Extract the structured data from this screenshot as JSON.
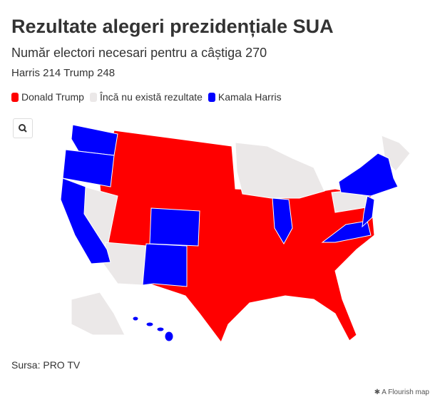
{
  "header": {
    "title": "Rezultate alegeri prezidențiale SUA",
    "subtitle": "Număr electori necesari pentru a câștiga 270",
    "tally": "Harris 214 Trump 248"
  },
  "legend": [
    {
      "label": "Donald Trump",
      "color": "#ff0000"
    },
    {
      "label": "Încă nu există rezultate",
      "color": "#ebe8e8"
    },
    {
      "label": "Kamala Harris",
      "color": "#0000ff"
    }
  ],
  "footer": {
    "source": "Sursa: PRO TV",
    "credit": "A Flourish map"
  }
}
